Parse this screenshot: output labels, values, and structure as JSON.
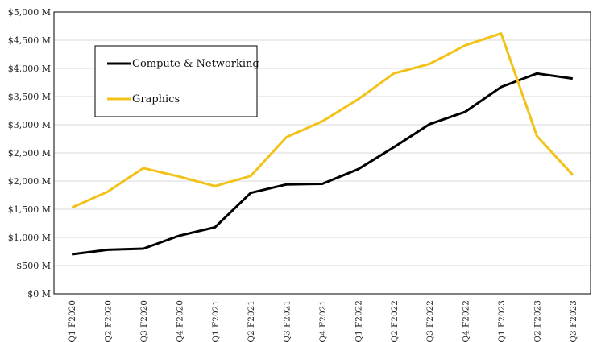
{
  "chart_data": {
    "type": "line",
    "title": "",
    "xlabel": "",
    "ylabel": "",
    "categories": [
      "Q1 F2020",
      "Q2 F2020",
      "Q3 F2020",
      "Q4 F2020",
      "Q1 F2021",
      "Q2 F2021",
      "Q3 F2021",
      "Q4 F2021",
      "Q1 F2022",
      "Q2 F2022",
      "Q3 F2022",
      "Q4 F2022",
      "Q1 F2023",
      "Q2 F2023",
      "Q3 F2023"
    ],
    "y_ticks": [
      0,
      500,
      1000,
      1500,
      2000,
      2500,
      3000,
      3500,
      4000,
      4500,
      5000
    ],
    "y_tick_labels": [
      "$0 M",
      "$500 M",
      "$1,000 M",
      "$1,500 M",
      "$2,000 M",
      "$2,500 M",
      "$3,000 M",
      "$3,500 M",
      "$4,000 M",
      "$4,500 M",
      "$5,000 M"
    ],
    "ylim": [
      0,
      5000
    ],
    "grid": true,
    "legend_position": "top-left",
    "series": [
      {
        "name": "Compute & Networking",
        "color": "#000000",
        "values": [
          700,
          780,
          800,
          1030,
          1180,
          1790,
          1940,
          1950,
          2210,
          2600,
          3010,
          3230,
          3670,
          3910,
          3820
        ]
      },
      {
        "name": "Graphics",
        "color": "#F2C218",
        "values": [
          1530,
          1810,
          2230,
          2080,
          1910,
          2090,
          2780,
          3060,
          3450,
          3910,
          4080,
          4410,
          4620,
          2800,
          2110
        ]
      }
    ]
  }
}
